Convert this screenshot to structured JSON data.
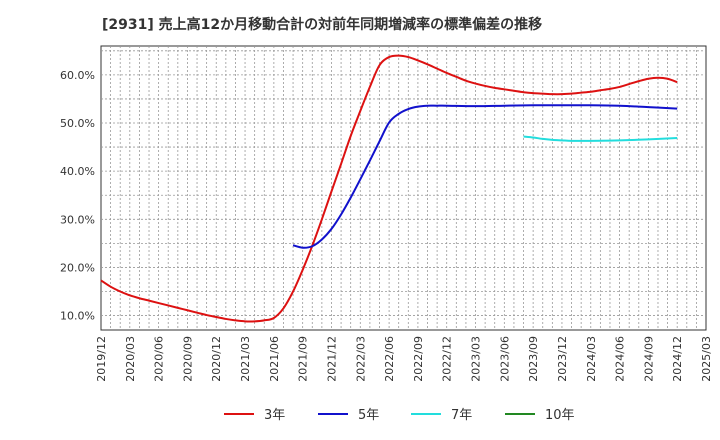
{
  "chart_data": {
    "type": "line",
    "title": "[2931]  売上高12か月移動合計の対前年同期増減率の標準偏差の推移",
    "xlabel": "",
    "ylabel": "",
    "x_tick_labels": [
      "2019/12",
      "2020/03",
      "2020/06",
      "2020/09",
      "2020/12",
      "2021/03",
      "2021/06",
      "2021/09",
      "2021/12",
      "2022/03",
      "2022/06",
      "2022/09",
      "2022/12",
      "2023/03",
      "2023/06",
      "2023/09",
      "2023/12",
      "2024/03",
      "2024/06",
      "2024/09",
      "2024/12",
      "2025/03"
    ],
    "y_tick_labels": [
      "10.0%",
      "20.0%",
      "30.0%",
      "40.0%",
      "50.0%",
      "60.0%"
    ],
    "y_ticks": [
      10,
      20,
      30,
      40,
      50,
      60
    ],
    "ylim": [
      7.0,
      66.0
    ],
    "xlim": [
      "2019/12",
      "2025/03"
    ],
    "grid": true,
    "legend_position": "bottom",
    "series": [
      {
        "name": "3年",
        "color": "#dd1111",
        "points": [
          [
            "2019/12",
            17.3
          ],
          [
            "2020/01",
            16.0
          ],
          [
            "2020/02",
            15.0
          ],
          [
            "2020/03",
            14.2
          ],
          [
            "2020/04",
            13.6
          ],
          [
            "2020/05",
            13.1
          ],
          [
            "2020/06",
            12.6
          ],
          [
            "2020/07",
            12.1
          ],
          [
            "2020/08",
            11.6
          ],
          [
            "2020/09",
            11.1
          ],
          [
            "2020/10",
            10.6
          ],
          [
            "2020/11",
            10.1
          ],
          [
            "2020/12",
            9.7
          ],
          [
            "2021/01",
            9.3
          ],
          [
            "2021/02",
            9.0
          ],
          [
            "2021/03",
            8.8
          ],
          [
            "2021/04",
            8.8
          ],
          [
            "2021/05",
            9.0
          ],
          [
            "2021/06",
            9.5
          ],
          [
            "2021/07",
            11.5
          ],
          [
            "2021/08",
            15.0
          ],
          [
            "2021/09",
            19.5
          ],
          [
            "2021/10",
            24.5
          ],
          [
            "2021/11",
            30.0
          ],
          [
            "2021/12",
            35.8
          ],
          [
            "2022/01",
            41.5
          ],
          [
            "2022/02",
            47.3
          ],
          [
            "2022/03",
            52.5
          ],
          [
            "2022/04",
            57.5
          ],
          [
            "2022/05",
            62.0
          ],
          [
            "2022/06",
            63.7
          ],
          [
            "2022/07",
            64.0
          ],
          [
            "2022/08",
            63.7
          ],
          [
            "2022/09",
            63.0
          ],
          [
            "2022/10",
            62.2
          ],
          [
            "2022/11",
            61.3
          ],
          [
            "2022/12",
            60.4
          ],
          [
            "2023/01",
            59.6
          ],
          [
            "2023/02",
            58.8
          ],
          [
            "2023/03",
            58.2
          ],
          [
            "2023/04",
            57.7
          ],
          [
            "2023/05",
            57.3
          ],
          [
            "2023/06",
            57.0
          ],
          [
            "2023/07",
            56.7
          ],
          [
            "2023/08",
            56.4
          ],
          [
            "2023/09",
            56.2
          ],
          [
            "2023/10",
            56.1
          ],
          [
            "2023/11",
            56.0
          ],
          [
            "2023/12",
            56.0
          ],
          [
            "2024/01",
            56.1
          ],
          [
            "2024/02",
            56.3
          ],
          [
            "2024/03",
            56.5
          ],
          [
            "2024/04",
            56.8
          ],
          [
            "2024/05",
            57.1
          ],
          [
            "2024/06",
            57.5
          ],
          [
            "2024/07",
            58.1
          ],
          [
            "2024/08",
            58.7
          ],
          [
            "2024/09",
            59.2
          ],
          [
            "2024/10",
            59.4
          ],
          [
            "2024/11",
            59.2
          ],
          [
            "2024/12",
            58.5
          ]
        ]
      },
      {
        "name": "5年",
        "color": "#1111cc",
        "points": [
          [
            "2021/08",
            24.6
          ],
          [
            "2021/09",
            24.1
          ],
          [
            "2021/10",
            24.4
          ],
          [
            "2021/11",
            25.8
          ],
          [
            "2021/12",
            28.0
          ],
          [
            "2022/01",
            31.0
          ],
          [
            "2022/02",
            34.5
          ],
          [
            "2022/03",
            38.3
          ],
          [
            "2022/04",
            42.2
          ],
          [
            "2022/05",
            46.2
          ],
          [
            "2022/06",
            50.1
          ],
          [
            "2022/07",
            51.9
          ],
          [
            "2022/08",
            52.9
          ],
          [
            "2022/09",
            53.4
          ],
          [
            "2022/10",
            53.6
          ],
          [
            "2022/11",
            53.6
          ],
          [
            "2022/12",
            53.6
          ],
          [
            "2023/03",
            53.5
          ],
          [
            "2023/06",
            53.6
          ],
          [
            "2023/09",
            53.7
          ],
          [
            "2023/12",
            53.7
          ],
          [
            "2024/03",
            53.7
          ],
          [
            "2024/06",
            53.6
          ],
          [
            "2024/09",
            53.3
          ],
          [
            "2024/12",
            53.0
          ]
        ]
      },
      {
        "name": "7年",
        "color": "#22dddd",
        "points": [
          [
            "2023/08",
            47.2
          ],
          [
            "2023/09",
            47.0
          ],
          [
            "2023/10",
            46.7
          ],
          [
            "2023/11",
            46.5
          ],
          [
            "2023/12",
            46.4
          ],
          [
            "2024/01",
            46.3
          ],
          [
            "2024/03",
            46.3
          ],
          [
            "2024/06",
            46.4
          ],
          [
            "2024/09",
            46.6
          ],
          [
            "2024/12",
            46.9
          ]
        ]
      },
      {
        "name": "10年",
        "color": "#228822",
        "points": []
      }
    ]
  }
}
